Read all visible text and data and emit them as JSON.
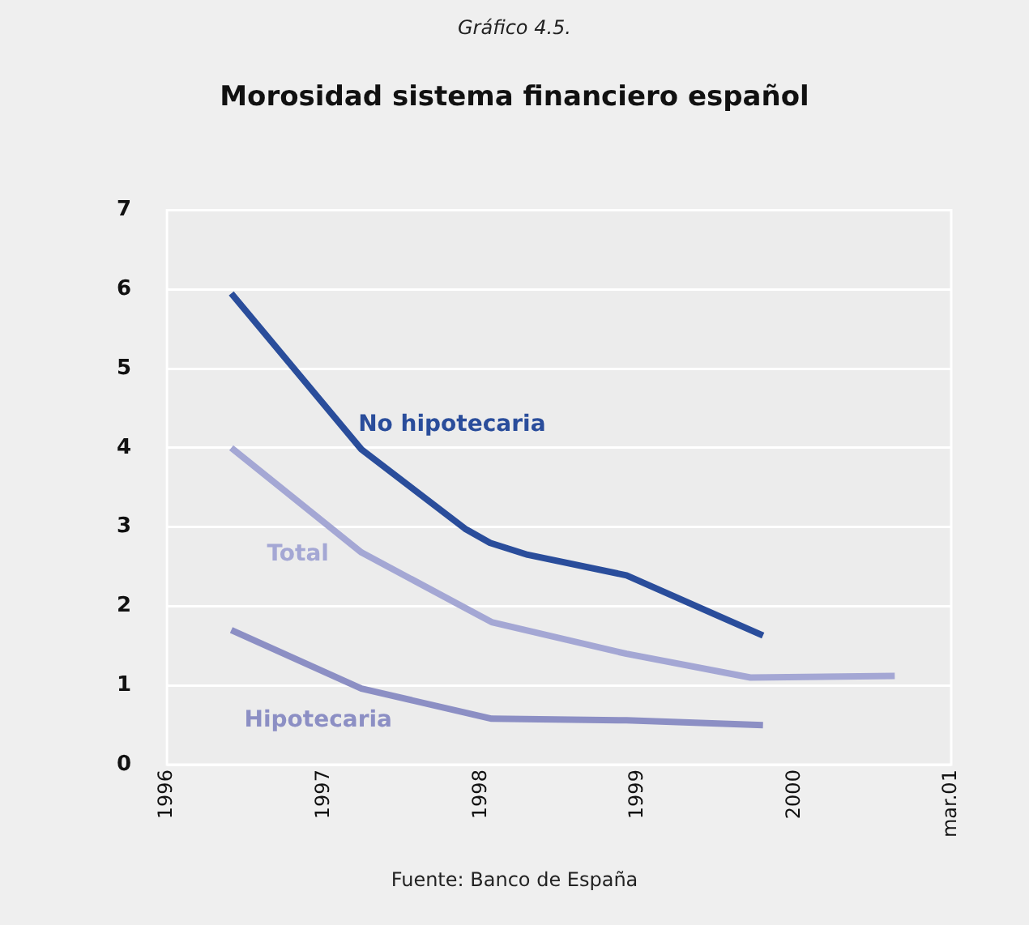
{
  "chart_data": {
    "type": "line",
    "subtitle": "Gráfico 4.5.",
    "title": "Morosidad sistema financiero español",
    "xlim": [
      1996,
      2001
    ],
    "xticks": [
      1996,
      1997,
      1998,
      1999,
      2000,
      {
        "value": 2001,
        "label": "mar.01"
      }
    ],
    "ylim": [
      0,
      7
    ],
    "yticks": [
      0,
      1,
      2,
      3,
      4,
      5,
      6,
      7
    ],
    "grid": "y",
    "legend": false,
    "marker": "none",
    "series": [
      {
        "name": "No hipotecaria",
        "color": "#2a4d9b",
        "x": [
          1996.41,
          1997.24,
          1997.9,
          1998.06,
          1998.3,
          1998.93,
          1999.8
        ],
        "values": [
          5.95,
          3.98,
          2.98,
          2.8,
          2.65,
          2.39,
          1.63
        ]
      },
      {
        "name": "Total",
        "color": "#a4a7d4",
        "x": [
          1996.41,
          1997.24,
          1998.07,
          1998.93,
          1999.72,
          2000.64
        ],
        "values": [
          4.0,
          2.68,
          1.8,
          1.4,
          1.1,
          1.12
        ]
      },
      {
        "name": "Hipotecaria",
        "color": "#8c8fc4",
        "x": [
          1996.41,
          1997.24,
          1998.07,
          1998.93,
          1999.8
        ],
        "values": [
          1.7,
          0.96,
          0.58,
          0.56,
          0.5
        ]
      }
    ],
    "annotations": [
      "Fuente: Banco de España"
    ]
  }
}
